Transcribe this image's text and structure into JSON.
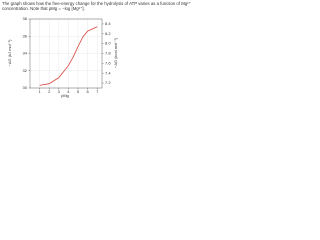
{
  "intro": "The graph shows how the free-energy change for the hydrolysis of ATP varies as a function of Mg²⁺ concentration. Note that pMg = −log [Mg²⁺].",
  "chart_data": {
    "type": "line",
    "x_label": "pMg",
    "y_label": "−ΔG (kJ mol⁻¹)",
    "y2_label": "−ΔG (kcal mol⁻¹)",
    "x": [
      1,
      2,
      3,
      4,
      4.5,
      5,
      5.5,
      6,
      7
    ],
    "series": [
      {
        "color": "#d9473f",
        "values": [
          30.3,
          30.5,
          31.2,
          32.6,
          33.6,
          34.8,
          35.9,
          36.6,
          37.1
        ]
      }
    ],
    "xlim": [
      0,
      7.5
    ],
    "xticks": [
      1,
      2,
      3,
      4,
      5,
      6,
      7
    ],
    "ylim": [
      30,
      38
    ],
    "yticks": [
      30,
      32,
      34,
      36,
      38
    ],
    "y2lim": [
      7.1,
      8.5
    ],
    "y2ticks": [
      7.2,
      7.4,
      7.6,
      7.8,
      {
        "value": 8,
        "label": "8.0"
      },
      8.2,
      8.4
    ],
    "grid": true
  }
}
